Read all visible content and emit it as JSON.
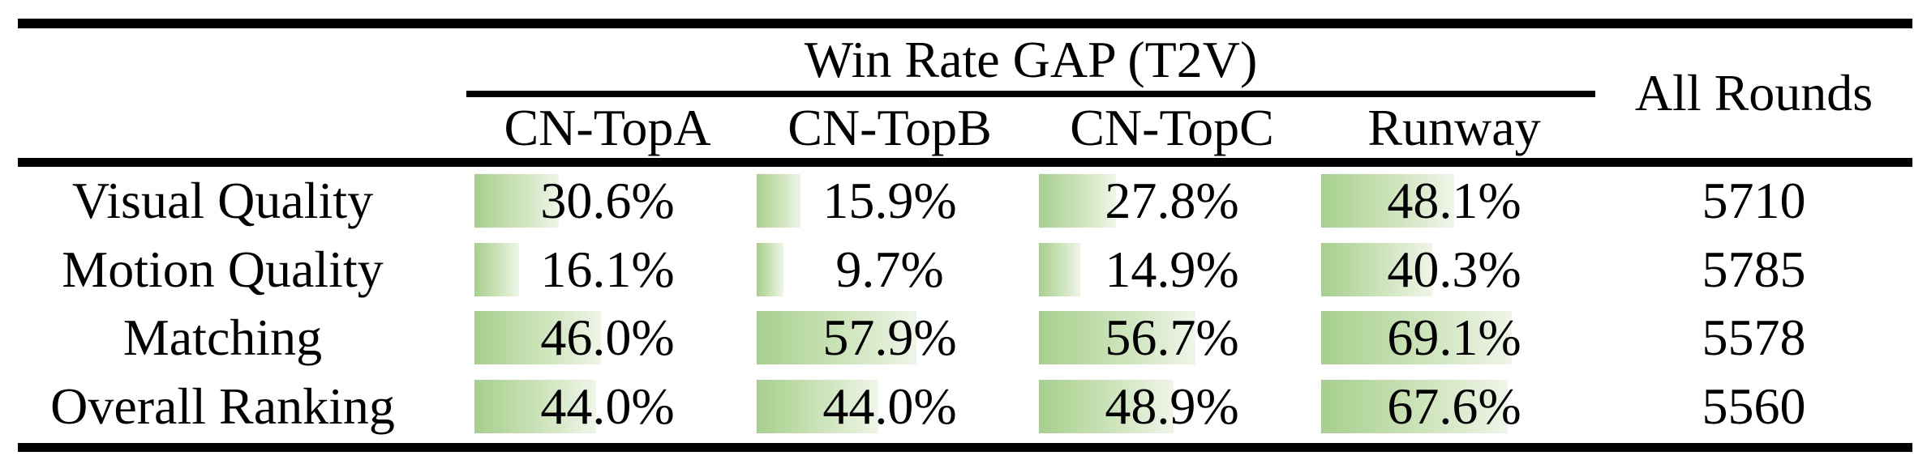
{
  "table": {
    "group_header": "Win Rate GAP (T2V)",
    "all_rounds_header": "All Rounds",
    "columns": [
      "CN-TopA",
      "CN-TopB",
      "CN-TopC",
      "Runway"
    ],
    "rows": [
      {
        "label": "Visual Quality",
        "cells": [
          {
            "display": "30.6%",
            "value": 30.6
          },
          {
            "display": "15.9%",
            "value": 15.9
          },
          {
            "display": "27.8%",
            "value": 27.8
          },
          {
            "display": "48.1%",
            "value": 48.1
          }
        ],
        "all_rounds": "5710"
      },
      {
        "label": "Motion Quality",
        "cells": [
          {
            "display": "16.1%",
            "value": 16.1
          },
          {
            "display": "9.7%",
            "value": 9.7
          },
          {
            "display": "14.9%",
            "value": 14.9
          },
          {
            "display": "40.3%",
            "value": 40.3
          }
        ],
        "all_rounds": "5785"
      },
      {
        "label": "Matching",
        "cells": [
          {
            "display": "46.0%",
            "value": 46.0
          },
          {
            "display": "57.9%",
            "value": 57.9
          },
          {
            "display": "56.7%",
            "value": 56.7
          },
          {
            "display": "69.1%",
            "value": 69.1
          }
        ],
        "all_rounds": "5578"
      },
      {
        "label": "Overall Ranking",
        "cells": [
          {
            "display": "44.0%",
            "value": 44.0
          },
          {
            "display": "44.0%",
            "value": 44.0
          },
          {
            "display": "48.9%",
            "value": 48.9
          },
          {
            "display": "67.6%",
            "value": 67.6
          }
        ],
        "all_rounds": "5560"
      }
    ],
    "colors": {
      "bar_gradient_start": "#a6cf8d",
      "bar_gradient_mid": "#cde4ba",
      "bar_gradient_end": "#eff5e8",
      "rule": "#000000",
      "text": "#000000"
    },
    "bar_scale": {
      "percent_min": 0,
      "percent_max": 100
    }
  }
}
